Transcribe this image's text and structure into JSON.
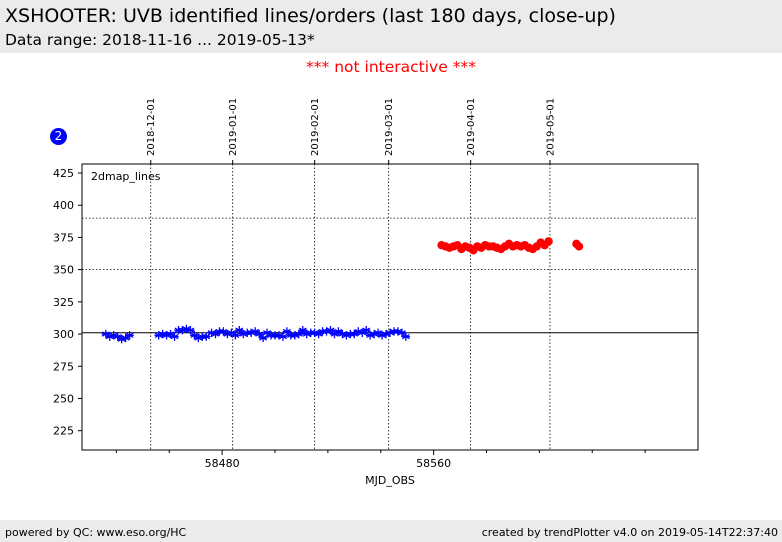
{
  "header": {
    "title": "XSHOOTER: UVB identified lines/orders (last 180 days, close-up)",
    "subtitle": "Data range: 2018-11-16 ... 2019-05-13*"
  },
  "notice": "*** not interactive ***",
  "badge": "2",
  "footer": {
    "left": "powered by QC: www.eso.org/HC",
    "right": "created by trendPlotter v4.0 on 2019-05-14T22:37:40"
  },
  "colors": {
    "series_uvb": "#0000ff",
    "series_red": "#ff0000",
    "notice": "#ff0000",
    "header_bg": "#ebebeb"
  },
  "chart_data": {
    "type": "scatter",
    "panel_label": "2dmap_lines",
    "xlabel": "MJD_OBS",
    "ylabel": "",
    "xlim": [
      58427,
      58660
    ],
    "ylim": [
      210,
      432
    ],
    "yticks": [
      225,
      250,
      275,
      300,
      325,
      350,
      375,
      400,
      425
    ],
    "xticks": [
      58480,
      58560
    ],
    "x_minor_ticks": [
      58440,
      58460,
      58500,
      58520,
      58540,
      58580,
      58600,
      58620,
      58640
    ],
    "top_date_ticks": [
      {
        "label": "2018-12-01",
        "x": 58453
      },
      {
        "label": "2019-01-01",
        "x": 58484
      },
      {
        "label": "2019-02-01",
        "x": 58515
      },
      {
        "label": "2019-03-01",
        "x": 58543
      },
      {
        "label": "2019-04-01",
        "x": 58574
      },
      {
        "label": "2019-05-01",
        "x": 58604
      }
    ],
    "hlines": [
      {
        "y": 390,
        "style": "dotted"
      },
      {
        "y": 350,
        "style": "dotted"
      },
      {
        "y": 301,
        "style": "solid"
      }
    ],
    "series": [
      {
        "marker": "star",
        "color": "#0000ff",
        "points": [
          [
            58436,
            300
          ],
          [
            58437.5,
            298
          ],
          [
            58439,
            299
          ],
          [
            58440.5,
            298
          ],
          [
            58442,
            296
          ],
          [
            58443.5,
            297
          ],
          [
            58445,
            299
          ],
          [
            58456,
            299
          ],
          [
            58457.5,
            300
          ],
          [
            58459,
            299
          ],
          [
            58460.5,
            300
          ],
          [
            58462,
            298
          ],
          [
            58463.5,
            303
          ],
          [
            58465,
            303
          ],
          [
            58466.5,
            304
          ],
          [
            58468,
            303
          ],
          [
            58469.5,
            299
          ],
          [
            58471,
            297
          ],
          [
            58472.5,
            298
          ],
          [
            58474,
            298
          ],
          [
            58476,
            301
          ],
          [
            58477.5,
            300
          ],
          [
            58479,
            302
          ],
          [
            58480.5,
            302
          ],
          [
            58482,
            300
          ],
          [
            58483.5,
            301
          ],
          [
            58485,
            299
          ],
          [
            58486.5,
            303
          ],
          [
            58488,
            300
          ],
          [
            58489.5,
            301
          ],
          [
            58491,
            301
          ],
          [
            58492.5,
            302
          ],
          [
            58494,
            300
          ],
          [
            58495.5,
            297
          ],
          [
            58497,
            301
          ],
          [
            58498.5,
            299
          ],
          [
            58500,
            299
          ],
          [
            58501.5,
            299
          ],
          [
            58503,
            298
          ],
          [
            58504.5,
            302
          ],
          [
            58506,
            299
          ],
          [
            58507.5,
            299
          ],
          [
            58509,
            300
          ],
          [
            58510.5,
            303
          ],
          [
            58512,
            300
          ],
          [
            58513.5,
            301
          ],
          [
            58515,
            301
          ],
          [
            58516.5,
            300
          ],
          [
            58518,
            302
          ],
          [
            58519.5,
            302
          ],
          [
            58521,
            303
          ],
          [
            58522.5,
            300
          ],
          [
            58524,
            302
          ],
          [
            58525.5,
            300
          ],
          [
            58527,
            299
          ],
          [
            58528.5,
            300
          ],
          [
            58530,
            300
          ],
          [
            58531.5,
            302
          ],
          [
            58533,
            301
          ],
          [
            58534.5,
            303
          ],
          [
            58536,
            299
          ],
          [
            58537.5,
            300
          ],
          [
            58539,
            301
          ],
          [
            58540.5,
            299
          ],
          [
            58542,
            300
          ],
          [
            58543.5,
            301
          ],
          [
            58545,
            302
          ],
          [
            58546.5,
            302
          ],
          [
            58548,
            301
          ],
          [
            58549.5,
            298
          ]
        ]
      },
      {
        "marker": "circle",
        "color": "#ff0000",
        "points": [
          [
            58563,
            369
          ],
          [
            58564.5,
            368
          ],
          [
            58566,
            367
          ],
          [
            58567.5,
            368
          ],
          [
            58569,
            369
          ],
          [
            58570.5,
            366
          ],
          [
            58572,
            368
          ],
          [
            58573.5,
            367
          ],
          [
            58575,
            365
          ],
          [
            58576.5,
            368
          ],
          [
            58578,
            367
          ],
          [
            58579.5,
            369
          ],
          [
            58581,
            368
          ],
          [
            58582.5,
            368
          ],
          [
            58584,
            367
          ],
          [
            58585.5,
            366
          ],
          [
            58587,
            368
          ],
          [
            58588.5,
            370
          ],
          [
            58590,
            368
          ],
          [
            58591.5,
            369
          ],
          [
            58593,
            368
          ],
          [
            58594.5,
            369
          ],
          [
            58596,
            367
          ],
          [
            58597.5,
            366
          ],
          [
            58599,
            368
          ],
          [
            58600.5,
            371
          ],
          [
            58602,
            369
          ],
          [
            58603.5,
            372
          ],
          [
            58614,
            370
          ],
          [
            58615,
            368
          ]
        ]
      }
    ]
  }
}
